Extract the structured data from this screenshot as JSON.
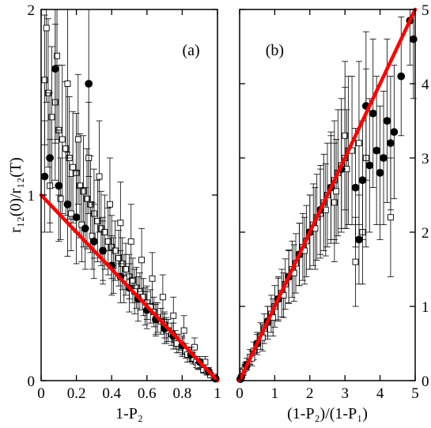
{
  "chart_data": [
    {
      "type": "scatter",
      "panel_label": "(a)",
      "xlabel": "1-P₂",
      "ylabel": "r₁₂(0)/r₁₂(T)",
      "xlim": [
        0,
        1
      ],
      "ylim": [
        0,
        2
      ],
      "xticks": [
        0,
        0.2,
        0.4,
        0.6,
        0.8,
        1
      ],
      "xtick_labels": [
        "0",
        "0.2",
        "0.4",
        "0.6",
        "0.8",
        "1"
      ],
      "yticks": [
        0,
        1,
        2
      ],
      "ytick_labels": [
        "0",
        "1",
        "2"
      ],
      "ytick_side": "left",
      "series": [
        {
          "marker": "open-square",
          "points": [
            [
              0.02,
              1.62,
              0.35
            ],
            [
              0.04,
              1.55,
              0.4
            ],
            [
              0.06,
              1.42,
              0.38
            ],
            [
              0.08,
              1.5,
              0.42
            ],
            [
              0.1,
              1.35,
              0.35
            ],
            [
              0.12,
              1.3,
              0.4
            ],
            [
              0.14,
              1.25,
              0.36
            ],
            [
              0.16,
              1.2,
              0.33
            ],
            [
              0.18,
              1.15,
              0.3
            ],
            [
              0.2,
              1.12,
              0.32
            ],
            [
              0.22,
              1.05,
              0.28
            ],
            [
              0.24,
              1.02,
              0.3
            ],
            [
              0.26,
              0.98,
              0.27
            ],
            [
              0.28,
              0.95,
              0.26
            ],
            [
              0.3,
              0.9,
              0.24
            ],
            [
              0.32,
              0.86,
              0.22
            ],
            [
              0.34,
              0.82,
              0.2
            ],
            [
              0.36,
              0.8,
              0.2
            ],
            [
              0.38,
              0.75,
              0.18
            ],
            [
              0.4,
              0.72,
              0.17
            ],
            [
              0.42,
              0.7,
              0.16
            ],
            [
              0.44,
              0.66,
              0.15
            ],
            [
              0.46,
              0.63,
              0.14
            ],
            [
              0.48,
              0.6,
              0.14
            ],
            [
              0.5,
              0.56,
              0.12
            ],
            [
              0.52,
              0.54,
              0.12
            ],
            [
              0.54,
              0.5,
              0.11
            ],
            [
              0.56,
              0.48,
              0.1
            ],
            [
              0.58,
              0.45,
              0.1
            ],
            [
              0.6,
              0.42,
              0.09
            ],
            [
              0.62,
              0.4,
              0.09
            ],
            [
              0.64,
              0.37,
              0.08
            ],
            [
              0.66,
              0.34,
              0.08
            ],
            [
              0.68,
              0.32,
              0.07
            ],
            [
              0.7,
              0.3,
              0.07
            ],
            [
              0.72,
              0.27,
              0.06
            ],
            [
              0.74,
              0.25,
              0.06
            ],
            [
              0.76,
              0.22,
              0.05
            ],
            [
              0.78,
              0.2,
              0.05
            ],
            [
              0.8,
              0.18,
              0.05
            ],
            [
              0.82,
              0.16,
              0.04
            ],
            [
              0.84,
              0.14,
              0.04
            ],
            [
              0.86,
              0.12,
              0.03
            ],
            [
              0.88,
              0.1,
              0.03
            ],
            [
              0.9,
              0.08,
              0.02
            ],
            [
              0.92,
              0.06,
              0.02
            ],
            [
              0.94,
              0.05,
              0.02
            ],
            [
              0.96,
              0.03,
              0.01
            ],
            [
              0.98,
              0.02,
              0.01
            ],
            [
              0.03,
              1.9,
              0.4
            ],
            [
              0.09,
              1.75,
              0.45
            ],
            [
              0.15,
              1.6,
              0.4
            ],
            [
              0.21,
              1.3,
              0.35
            ],
            [
              0.27,
              1.2,
              0.3
            ],
            [
              0.33,
              1.1,
              0.3
            ],
            [
              0.39,
              0.95,
              0.25
            ],
            [
              0.45,
              0.85,
              0.22
            ],
            [
              0.51,
              0.75,
              0.2
            ],
            [
              0.57,
              0.65,
              0.17
            ],
            [
              0.63,
              0.55,
              0.14
            ],
            [
              0.69,
              0.45,
              0.12
            ],
            [
              0.75,
              0.35,
              0.1
            ],
            [
              0.81,
              0.27,
              0.08
            ],
            [
              0.87,
              0.18,
              0.05
            ],
            [
              0.93,
              0.1,
              0.03
            ],
            [
              0.05,
              1.05,
              0.25
            ],
            [
              0.11,
              0.98,
              0.22
            ],
            [
              0.17,
              0.9,
              0.2
            ],
            [
              0.23,
              0.84,
              0.2
            ],
            [
              0.29,
              0.78,
              0.18
            ],
            [
              0.35,
              0.7,
              0.16
            ],
            [
              0.41,
              0.62,
              0.15
            ],
            [
              0.47,
              0.55,
              0.13
            ],
            [
              0.53,
              0.48,
              0.12
            ],
            [
              0.59,
              0.4,
              0.1
            ],
            [
              0.65,
              0.33,
              0.08
            ],
            [
              0.71,
              0.27,
              0.07
            ],
            [
              0.77,
              0.2,
              0.05
            ],
            [
              0.83,
              0.14,
              0.04
            ],
            [
              0.89,
              0.08,
              0.02
            ]
          ]
        },
        {
          "marker": "filled-circle",
          "points": [
            [
              0.08,
              1.68,
              0.4
            ],
            [
              0.27,
              1.6,
              0.5
            ],
            [
              0.02,
              1.1,
              0.3
            ],
            [
              0.05,
              1.2,
              0.35
            ],
            [
              0.1,
              1.05,
              0.3
            ],
            [
              0.15,
              0.95,
              0.28
            ],
            [
              0.2,
              0.88,
              0.25
            ],
            [
              0.25,
              0.82,
              0.22
            ],
            [
              0.3,
              0.75,
              0.2
            ],
            [
              0.35,
              0.7,
              0.18
            ],
            [
              0.4,
              0.62,
              0.16
            ],
            [
              0.45,
              0.56,
              0.14
            ],
            [
              0.5,
              0.5,
              0.13
            ],
            [
              0.55,
              0.44,
              0.12
            ],
            [
              0.6,
              0.38,
              0.1
            ],
            [
              0.65,
              0.33,
              0.09
            ],
            [
              0.7,
              0.28,
              0.08
            ],
            [
              0.75,
              0.24,
              0.07
            ],
            [
              0.8,
              0.19,
              0.05
            ],
            [
              0.85,
              0.14,
              0.04
            ],
            [
              0.9,
              0.1,
              0.03
            ],
            [
              0.95,
              0.05,
              0.02
            ],
            [
              0.99,
              0.01,
              0.01
            ]
          ]
        },
        {
          "marker": "red-fit-line",
          "points": [
            [
              0,
              1
            ],
            [
              1,
              0
            ]
          ]
        }
      ]
    },
    {
      "type": "scatter",
      "panel_label": "(b)",
      "xlabel": "(1-P₂)/(1-P₁)",
      "xlim": [
        0,
        5
      ],
      "ylim": [
        0,
        5
      ],
      "xticks": [
        0,
        1,
        2,
        3,
        4,
        5
      ],
      "xtick_labels": [
        "0",
        "1",
        "2",
        "3",
        "4",
        "5"
      ],
      "yticks": [
        0,
        1,
        2,
        3,
        4,
        5
      ],
      "ytick_labels": [
        "0",
        "1",
        "2",
        "3",
        "4",
        "5"
      ],
      "ytick_side": "right",
      "series": [
        {
          "marker": "open-square",
          "points": [
            [
              0.1,
              0.12,
              0.05
            ],
            [
              0.2,
              0.22,
              0.08
            ],
            [
              0.3,
              0.32,
              0.1
            ],
            [
              0.4,
              0.4,
              0.12
            ],
            [
              0.5,
              0.5,
              0.15
            ],
            [
              0.6,
              0.6,
              0.18
            ],
            [
              0.7,
              0.7,
              0.2
            ],
            [
              0.8,
              0.78,
              0.22
            ],
            [
              0.9,
              0.9,
              0.25
            ],
            [
              1.0,
              1.0,
              0.28
            ],
            [
              1.1,
              1.1,
              0.3
            ],
            [
              1.2,
              1.18,
              0.32
            ],
            [
              1.3,
              1.3,
              0.34
            ],
            [
              1.4,
              1.4,
              0.36
            ],
            [
              1.5,
              1.5,
              0.38
            ],
            [
              1.6,
              1.58,
              0.4
            ],
            [
              1.7,
              1.7,
              0.42
            ],
            [
              1.8,
              1.8,
              0.45
            ],
            [
              1.9,
              1.88,
              0.48
            ],
            [
              2.0,
              2.0,
              0.5
            ],
            [
              2.1,
              2.1,
              0.55
            ],
            [
              2.2,
              2.2,
              0.58
            ],
            [
              2.3,
              2.25,
              0.6
            ],
            [
              2.4,
              2.4,
              0.65
            ],
            [
              2.5,
              2.5,
              0.7
            ],
            [
              2.6,
              2.6,
              0.75
            ],
            [
              2.7,
              2.7,
              0.8
            ],
            [
              2.8,
              2.8,
              0.85
            ],
            [
              2.9,
              2.9,
              0.9
            ],
            [
              3.0,
              3.0,
              0.95
            ],
            [
              3.1,
              3.1,
              1.0
            ],
            [
              3.2,
              3.1,
              1.0
            ],
            [
              3.4,
              3.2,
              1.1
            ],
            [
              3.6,
              3.0,
              1.2
            ],
            [
              3.3,
              1.6,
              0.6
            ],
            [
              3.5,
              2.0,
              0.7
            ],
            [
              4.3,
              2.2,
              0.8
            ],
            [
              3.0,
              3.3,
              1.0
            ],
            [
              2.7,
              2.4,
              0.8
            ],
            [
              0.15,
              0.18,
              0.06
            ],
            [
              0.35,
              0.3,
              0.1
            ],
            [
              0.65,
              0.58,
              0.18
            ],
            [
              0.95,
              0.85,
              0.25
            ],
            [
              1.25,
              1.15,
              0.3
            ],
            [
              1.55,
              1.45,
              0.38
            ],
            [
              1.85,
              1.75,
              0.45
            ],
            [
              2.15,
              2.05,
              0.55
            ],
            [
              2.45,
              2.3,
              0.62
            ],
            [
              2.75,
              2.55,
              0.7
            ],
            [
              3.05,
              2.85,
              0.8
            ]
          ]
        },
        {
          "marker": "filled-circle",
          "points": [
            [
              4.85,
              4.85,
              0.6
            ],
            [
              4.95,
              4.6,
              0.8
            ],
            [
              4.6,
              4.1,
              0.8
            ],
            [
              3.8,
              3.6,
              1.0
            ],
            [
              3.6,
              3.7,
              1.0
            ],
            [
              4.2,
              3.5,
              1.1
            ],
            [
              4.3,
              3.2,
              0.9
            ],
            [
              4.4,
              3.35,
              0.9
            ],
            [
              3.9,
              3.1,
              1.0
            ],
            [
              3.7,
              2.9,
              0.9
            ],
            [
              3.5,
              2.7,
              0.8
            ],
            [
              3.3,
              2.6,
              0.8
            ],
            [
              3.4,
              1.9,
              0.6
            ],
            [
              4.0,
              2.8,
              0.9
            ],
            [
              4.1,
              3.0,
              0.9
            ],
            [
              0.2,
              0.2,
              0.05
            ],
            [
              0.5,
              0.5,
              0.12
            ],
            [
              0.8,
              0.8,
              0.2
            ],
            [
              1.1,
              1.1,
              0.28
            ],
            [
              1.4,
              1.4,
              0.35
            ],
            [
              1.7,
              1.7,
              0.42
            ],
            [
              2.0,
              2.0,
              0.5
            ],
            [
              2.3,
              2.3,
              0.6
            ],
            [
              2.6,
              2.6,
              0.7
            ],
            [
              2.9,
              2.85,
              0.8
            ],
            [
              0.05,
              0.05,
              0.02
            ],
            [
              0.02,
              0.02,
              0.01
            ]
          ]
        },
        {
          "marker": "red-fit-line",
          "points": [
            [
              0,
              0
            ],
            [
              5,
              5
            ]
          ]
        }
      ]
    }
  ]
}
